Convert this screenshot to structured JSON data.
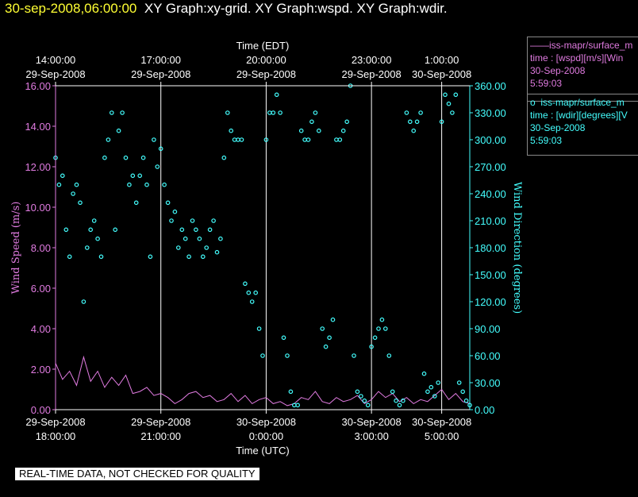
{
  "header": {
    "timestamp": "30-sep-2008,06:00:00",
    "graphs": "XY Graph:xy-grid.  XY Graph:wspd.  XY Graph:wdir."
  },
  "legend": [
    {
      "marker": "——",
      "line1": "iss-mapr/surface_m",
      "line2": "time : [wspd][m/s][Win",
      "line3": "30-Sep-2008",
      "line4": "5:59:03"
    },
    {
      "marker": "o",
      "line1": "iss-mapr/surface_m",
      "line2": "time : [wdir][degrees][V",
      "line3": "30-Sep-2008",
      "line4": "5:59:03"
    }
  ],
  "footer": "REAL-TIME DATA, NOT CHECKED FOR QUALITY",
  "colors": {
    "wspd": "#e07be0",
    "wdir": "#44ffff",
    "timestamp": "#ffff33"
  },
  "chart_data": {
    "type": "scatter",
    "top_axis_label": "Time (EDT)",
    "bottom_axis_label": "Time (UTC)",
    "ylabel_left": "Wind Speed (m/s)",
    "ylabel_right": "Wind Direction (degrees)",
    "x_range_hours_utc": [
      18.0,
      29.8
    ],
    "ylim_left": [
      0,
      16
    ],
    "ylim_right": [
      0,
      360
    ],
    "left_ticks": [
      "0.00",
      "2.00",
      "4.00",
      "6.00",
      "8.00",
      "10.00",
      "12.00",
      "14.00",
      "16.00"
    ],
    "right_ticks": [
      "0.00",
      "30.00",
      "60.00",
      "90.00",
      "120.00",
      "150.00",
      "180.00",
      "210.00",
      "240.00",
      "270.00",
      "300.00",
      "330.00",
      "360.00"
    ],
    "bottom_ticks": [
      {
        "t": 18,
        "date": "29-Sep-2008",
        "time": "18:00:00"
      },
      {
        "t": 21,
        "date": "29-Sep-2008",
        "time": "21:00:00"
      },
      {
        "t": 24,
        "date": "30-Sep-2008",
        "time": "0:00:00"
      },
      {
        "t": 27,
        "date": "30-Sep-2008",
        "time": "3:00:00"
      },
      {
        "t": 29,
        "date": "30-Sep-2008",
        "time": "5:00:00"
      }
    ],
    "top_ticks": [
      {
        "t": 18,
        "time": "14:00:00",
        "date": "29-Sep-2008"
      },
      {
        "t": 21,
        "time": "17:00:00",
        "date": "29-Sep-2008"
      },
      {
        "t": 24,
        "time": "20:00:00",
        "date": "29-Sep-2008"
      },
      {
        "t": 27,
        "time": "23:00:00",
        "date": "29-Sep-2008"
      },
      {
        "t": 29,
        "time": "1:00:00",
        "date": "30-Sep-2008"
      }
    ],
    "grid_lines_at": [
      21,
      24,
      27,
      29
    ],
    "series": [
      {
        "name": "wspd",
        "style": "line",
        "x": [
          18.0,
          18.2,
          18.4,
          18.6,
          18.8,
          19.0,
          19.2,
          19.4,
          19.6,
          19.8,
          20.0,
          20.2,
          20.4,
          20.6,
          20.8,
          21.0,
          21.2,
          21.4,
          21.6,
          21.8,
          22.0,
          22.2,
          22.4,
          22.6,
          22.8,
          23.0,
          23.2,
          23.4,
          23.6,
          23.8,
          24.0,
          24.2,
          24.4,
          24.6,
          24.8,
          25.0,
          25.2,
          25.4,
          25.6,
          25.8,
          26.0,
          26.2,
          26.4,
          26.6,
          26.8,
          27.0,
          27.2,
          27.4,
          27.6,
          27.8,
          28.0,
          28.2,
          28.4,
          28.6,
          28.8,
          29.0,
          29.2,
          29.4,
          29.6,
          29.8
        ],
        "values": [
          2.3,
          1.5,
          1.9,
          1.2,
          2.6,
          1.4,
          1.9,
          1.1,
          1.6,
          1.2,
          1.7,
          0.8,
          0.9,
          1.1,
          0.7,
          0.8,
          0.6,
          0.3,
          0.5,
          0.8,
          0.9,
          0.6,
          0.7,
          0.4,
          0.5,
          0.8,
          0.4,
          0.7,
          0.3,
          0.5,
          0.6,
          0.3,
          0.4,
          0.2,
          0.3,
          0.6,
          0.5,
          0.9,
          0.4,
          0.3,
          0.6,
          0.4,
          0.5,
          0.7,
          0.3,
          0.5,
          0.9,
          0.6,
          0.8,
          0.4,
          0.6,
          0.3,
          0.5,
          0.4,
          0.7,
          1.0,
          0.5,
          0.8,
          0.4,
          0.3
        ]
      },
      {
        "name": "wdir",
        "style": "circle",
        "x": [
          18.0,
          18.1,
          18.2,
          18.3,
          18.4,
          18.5,
          18.6,
          18.7,
          18.8,
          18.9,
          19.0,
          19.1,
          19.2,
          19.3,
          19.4,
          19.5,
          19.6,
          19.7,
          19.8,
          19.9,
          20.0,
          20.1,
          20.2,
          20.3,
          20.4,
          20.5,
          20.6,
          20.7,
          20.8,
          20.9,
          21.0,
          21.1,
          21.2,
          21.3,
          21.4,
          21.5,
          21.6,
          21.7,
          21.8,
          21.9,
          22.0,
          22.1,
          22.2,
          22.3,
          22.4,
          22.5,
          22.6,
          22.7,
          22.8,
          22.9,
          23.0,
          23.1,
          23.2,
          23.3,
          23.4,
          23.5,
          23.6,
          23.7,
          23.8,
          23.9,
          24.0,
          24.1,
          24.2,
          24.3,
          24.4,
          24.5,
          24.6,
          24.7,
          24.8,
          24.9,
          25.0,
          25.1,
          25.2,
          25.3,
          25.4,
          25.5,
          25.6,
          25.7,
          25.8,
          25.9,
          26.0,
          26.1,
          26.2,
          26.3,
          26.4,
          26.5,
          26.6,
          26.7,
          26.8,
          26.9,
          27.0,
          27.1,
          27.2,
          27.3,
          27.4,
          27.5,
          27.6,
          27.7,
          27.8,
          27.9,
          28.0,
          28.1,
          28.2,
          28.3,
          28.4,
          28.5,
          28.6,
          28.7,
          28.8,
          28.9,
          29.0,
          29.1,
          29.2,
          29.3,
          29.4,
          29.5,
          29.6,
          29.7,
          29.8
        ],
        "values": [
          280,
          250,
          260,
          200,
          170,
          240,
          250,
          230,
          120,
          180,
          200,
          210,
          190,
          170,
          280,
          300,
          330,
          200,
          310,
          330,
          280,
          250,
          260,
          230,
          260,
          280,
          250,
          170,
          300,
          270,
          290,
          250,
          230,
          210,
          220,
          180,
          200,
          190,
          170,
          210,
          200,
          190,
          170,
          180,
          200,
          210,
          175,
          190,
          280,
          330,
          310,
          300,
          300,
          300,
          140,
          130,
          120,
          130,
          90,
          60,
          300,
          330,
          330,
          350,
          330,
          80,
          60,
          20,
          5,
          5,
          310,
          300,
          300,
          320,
          330,
          310,
          90,
          70,
          80,
          100,
          300,
          300,
          310,
          320,
          360,
          60,
          20,
          15,
          10,
          5,
          70,
          80,
          90,
          100,
          90,
          60,
          20,
          10,
          5,
          10,
          330,
          320,
          310,
          320,
          330,
          40,
          20,
          25,
          15,
          30,
          320,
          350,
          340,
          330,
          350,
          30,
          20,
          10,
          5
        ]
      }
    ]
  }
}
